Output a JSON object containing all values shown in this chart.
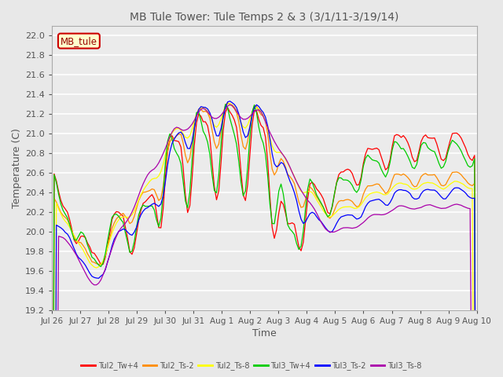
{
  "title": "MB Tule Tower: Tule Temps 2 & 3 (3/1/11-3/19/14)",
  "xlabel": "Time",
  "ylabel": "Temperature (C)",
  "legend_label": "MB_tule",
  "ylim": [
    19.2,
    22.1
  ],
  "series_names": [
    "Tul2_Tw+4",
    "Tul2_Ts-2",
    "Tul2_Ts-8",
    "Tul3_Tw+4",
    "Tul3_Ts-2",
    "Tul3_Ts-8"
  ],
  "series_colors": [
    "#ff0000",
    "#ff8c00",
    "#ffff00",
    "#00cc00",
    "#0000ff",
    "#aa00aa"
  ],
  "xtick_labels": [
    "Jul 26",
    "Jul 27",
    "Jul 28",
    "Jul 29",
    "Jul 30",
    "Jul 31",
    "Aug 1",
    "Aug 2",
    "Aug 3",
    "Aug 4",
    "Aug 5",
    "Aug 6",
    "Aug 7",
    "Aug 8",
    "Aug 9",
    "Aug 10"
  ],
  "yticks": [
    19.2,
    19.4,
    19.6,
    19.8,
    20.0,
    20.2,
    20.4,
    20.6,
    20.8,
    21.0,
    21.2,
    21.4,
    21.6,
    21.8,
    22.0
  ],
  "background_color": "#e8e8e8",
  "plot_bg_color": "#ebebeb"
}
